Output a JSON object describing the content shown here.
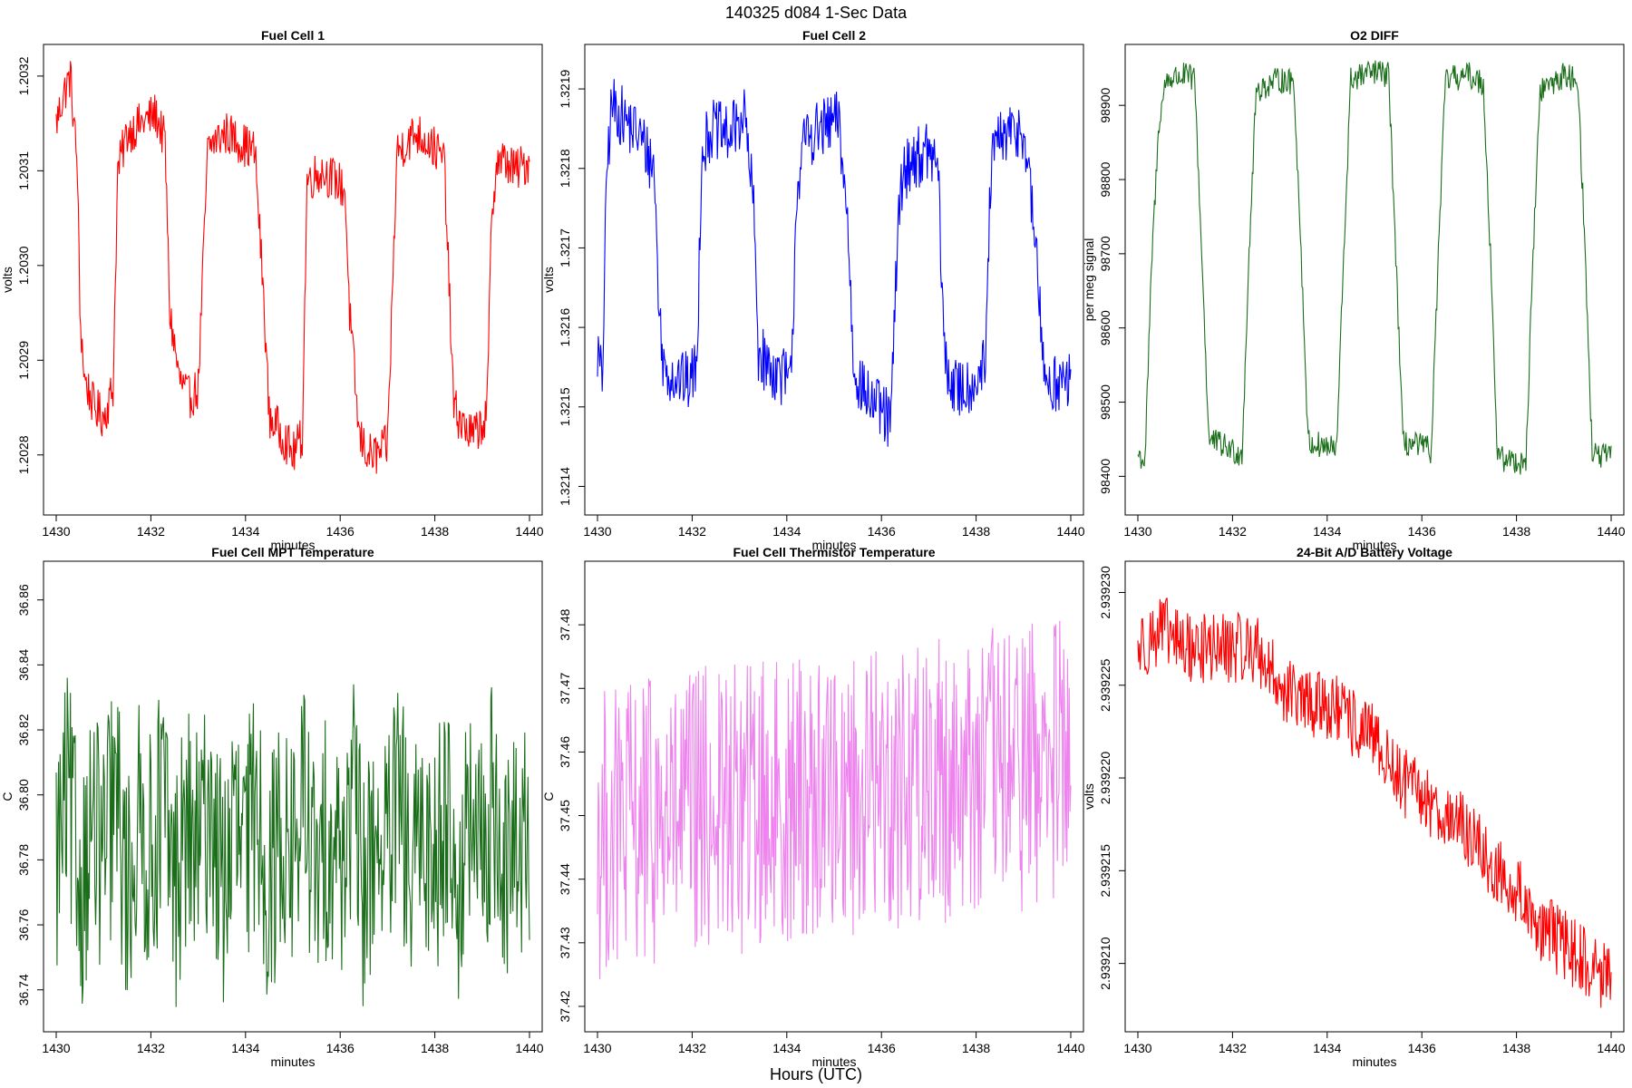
{
  "figure": {
    "title": "140325   d084   1-Sec Data",
    "outer_xlabel": "Hours (UTC)"
  },
  "chart_data": [
    {
      "type": "line",
      "title": "Fuel Cell 1",
      "xlabel": "minutes",
      "ylabel": "volts",
      "color": "#ff0000",
      "xlim": [
        1430,
        1440
      ],
      "ylim": [
        1.20275,
        1.20322
      ],
      "xticks": [
        1430,
        1432,
        1434,
        1436,
        1438,
        1440
      ],
      "xtick_labels": [
        "1430",
        "1432",
        "1434",
        "1436",
        "1438",
        "1440"
      ],
      "yticks": [
        1.2028,
        1.2029,
        1.203,
        1.2031,
        1.2032
      ],
      "ytick_labels": [
        "1.2028",
        "1.2029",
        "1.2030",
        "1.2031",
        "1.2032"
      ],
      "series": [
        {
          "x": [
            1430,
            1430.15,
            1430.3,
            1430.45,
            1430.5,
            1430.6,
            1430.8,
            1431,
            1431.2,
            1431.3,
            1431.5,
            1431.8,
            1432.1,
            1432.3,
            1432.4,
            1432.6,
            1432.8,
            1433,
            1433.2,
            1433.3,
            1433.6,
            1433.9,
            1434.2,
            1434.4,
            1434.5,
            1434.8,
            1435,
            1435.2,
            1435.3,
            1435.6,
            1435.9,
            1436.1,
            1436.2,
            1436.4,
            1436.6,
            1436.8,
            1437,
            1437.2,
            1437.4,
            1437.6,
            1437.9,
            1438.2,
            1438.3,
            1438.4,
            1438.6,
            1438.8,
            1439.1,
            1439.2,
            1439.3,
            1439.5,
            1439.7,
            1440
          ],
          "y": [
            1.20315,
            1.20318,
            1.2032,
            1.2031,
            1.20295,
            1.20288,
            1.20285,
            1.20284,
            1.20287,
            1.2031,
            1.20314,
            1.20315,
            1.20316,
            1.20313,
            1.20295,
            1.20288,
            1.20286,
            1.20287,
            1.20312,
            1.20313,
            1.20314,
            1.20313,
            1.20312,
            1.20295,
            1.20284,
            1.20282,
            1.2028,
            1.20282,
            1.20309,
            1.2031,
            1.20309,
            1.20308,
            1.20295,
            1.20282,
            1.2028,
            1.2028,
            1.20281,
            1.20312,
            1.20313,
            1.20314,
            1.20313,
            1.20311,
            1.20298,
            1.20285,
            1.20283,
            1.20282,
            1.20284,
            1.20305,
            1.20311,
            1.20311,
            1.2031,
            1.20311
          ]
        }
      ]
    },
    {
      "type": "line",
      "title": "Fuel Cell 2",
      "xlabel": "minutes",
      "ylabel": "volts",
      "color": "#0000ff",
      "xlim": [
        1430,
        1440
      ],
      "ylim": [
        1.32138,
        1.32194
      ],
      "xticks": [
        1430,
        1432,
        1434,
        1436,
        1438,
        1440
      ],
      "xtick_labels": [
        "1430",
        "1432",
        "1434",
        "1436",
        "1438",
        "1440"
      ],
      "yticks": [
        1.3214,
        1.3215,
        1.3216,
        1.3217,
        1.3218,
        1.3219
      ],
      "ytick_labels": [
        "1.3214",
        "1.3215",
        "1.3216",
        "1.3217",
        "1.3218",
        "1.3219"
      ],
      "series": [
        {
          "x": [
            1430,
            1430.1,
            1430.2,
            1430.3,
            1430.6,
            1430.9,
            1431.2,
            1431.3,
            1431.4,
            1431.6,
            1431.9,
            1432.1,
            1432.2,
            1432.4,
            1432.8,
            1433.1,
            1433.3,
            1433.4,
            1433.6,
            1433.9,
            1434.1,
            1434.2,
            1434.4,
            1434.8,
            1435.1,
            1435.3,
            1435.4,
            1435.6,
            1435.9,
            1436.2,
            1436.3,
            1436.4,
            1436.6,
            1437,
            1437.2,
            1437.3,
            1437.4,
            1437.6,
            1437.9,
            1438.2,
            1438.3,
            1438.4,
            1438.6,
            1439,
            1439.3,
            1439.4,
            1439.6,
            1440
          ],
          "y": [
            1.32157,
            1.32153,
            1.3218,
            1.32188,
            1.32186,
            1.32184,
            1.3218,
            1.32162,
            1.32155,
            1.32154,
            1.32153,
            1.32155,
            1.32182,
            1.32185,
            1.32184,
            1.32187,
            1.32175,
            1.32157,
            1.32155,
            1.32154,
            1.32153,
            1.32177,
            1.32184,
            1.32185,
            1.32186,
            1.32172,
            1.32156,
            1.32152,
            1.3215,
            1.32148,
            1.32165,
            1.32178,
            1.32181,
            1.32182,
            1.3218,
            1.3216,
            1.32154,
            1.32152,
            1.32153,
            1.32155,
            1.32178,
            1.32183,
            1.32184,
            1.32185,
            1.32168,
            1.32155,
            1.32153,
            1.32153
          ]
        }
      ]
    },
    {
      "type": "line",
      "title": "O2 DIFF",
      "xlabel": "minutes",
      "ylabel": "per meg signal",
      "color": "#1a6e1a",
      "xlim": [
        1430,
        1440
      ],
      "ylim": [
        98365,
        98965
      ],
      "xticks": [
        1430,
        1432,
        1434,
        1436,
        1438,
        1440
      ],
      "xtick_labels": [
        "1430",
        "1432",
        "1434",
        "1436",
        "1438",
        "1440"
      ],
      "yticks": [
        98400,
        98500,
        98600,
        98700,
        98800,
        98900
      ],
      "ytick_labels": [
        "98400",
        "98500",
        "98600",
        "98700",
        "98800",
        "98900"
      ],
      "series": [
        {
          "x": [
            1430,
            1430.15,
            1430.3,
            1430.45,
            1430.6,
            1431,
            1431.2,
            1431.35,
            1431.5,
            1432,
            1432.2,
            1432.35,
            1432.5,
            1433,
            1433.3,
            1433.45,
            1433.6,
            1434,
            1434.2,
            1434.35,
            1434.5,
            1435,
            1435.3,
            1435.45,
            1435.6,
            1436,
            1436.2,
            1436.35,
            1436.5,
            1437,
            1437.3,
            1437.45,
            1437.6,
            1438,
            1438.2,
            1438.35,
            1438.5,
            1439,
            1439.3,
            1439.45,
            1439.6,
            1440
          ],
          "y": [
            98430,
            98420,
            98700,
            98880,
            98935,
            98940,
            98935,
            98700,
            98450,
            98435,
            98430,
            98700,
            98920,
            98935,
            98930,
            98700,
            98445,
            98440,
            98435,
            98700,
            98935,
            98945,
            98940,
            98700,
            98445,
            98440,
            98435,
            98700,
            98935,
            98940,
            98930,
            98700,
            98425,
            98420,
            98420,
            98700,
            98920,
            98940,
            98935,
            98700,
            98430,
            98425
          ]
        }
      ]
    },
    {
      "type": "line",
      "title": "Fuel Cell MPT Temperature",
      "xlabel": "minutes",
      "ylabel": "C",
      "color": "#1a6e1a",
      "xlim": [
        1430,
        1440
      ],
      "ylim": [
        36.731,
        36.868
      ],
      "xticks": [
        1430,
        1432,
        1434,
        1436,
        1438,
        1440
      ],
      "xtick_labels": [
        "1430",
        "1432",
        "1434",
        "1436",
        "1438",
        "1440"
      ],
      "yticks": [
        36.74,
        36.76,
        36.78,
        36.8,
        36.82,
        36.84,
        36.86
      ],
      "ytick_labels": [
        "36.74",
        "36.76",
        "36.78",
        "36.80",
        "36.82",
        "36.84",
        "36.86"
      ],
      "series": [
        {
          "x": [
            1430,
            1430.25,
            1430.5,
            1430.75,
            1431,
            1431.25,
            1431.5,
            1431.75,
            1432,
            1432.25,
            1432.5,
            1432.75,
            1433,
            1433.25,
            1433.5,
            1433.75,
            1434,
            1434.25,
            1434.5,
            1434.75,
            1435,
            1435.25,
            1435.5,
            1435.75,
            1436,
            1436.25,
            1436.5,
            1436.75,
            1437,
            1437.25,
            1437.5,
            1437.75,
            1438,
            1438.25,
            1438.5,
            1438.75,
            1439,
            1439.25,
            1439.5,
            1439.75,
            1440
          ],
          "y": [
            36.78,
            36.8,
            36.77,
            36.79,
            36.78,
            36.8,
            36.77,
            36.79,
            36.78,
            36.8,
            36.77,
            36.79,
            36.78,
            36.8,
            36.77,
            36.79,
            36.78,
            36.8,
            36.77,
            36.79,
            36.78,
            36.8,
            36.77,
            36.79,
            36.78,
            36.8,
            36.77,
            36.79,
            36.78,
            36.8,
            36.77,
            36.79,
            36.78,
            36.8,
            36.77,
            36.79,
            36.78,
            36.8,
            36.77,
            36.79,
            36.78
          ]
        }
      ]
    },
    {
      "type": "line",
      "title": "Fuel Cell Thermistor Temperature",
      "xlabel": "minutes",
      "ylabel": "C",
      "color": "#ee82ee",
      "xlim": [
        1430,
        1440
      ],
      "ylim": [
        37.418,
        37.488
      ],
      "xticks": [
        1430,
        1432,
        1434,
        1436,
        1438,
        1440
      ],
      "xtick_labels": [
        "1430",
        "1432",
        "1434",
        "1436",
        "1438",
        "1440"
      ],
      "yticks": [
        37.42,
        37.43,
        37.44,
        37.45,
        37.46,
        37.47,
        37.48
      ],
      "ytick_labels": [
        "37.42",
        "37.43",
        "37.44",
        "37.45",
        "37.46",
        "37.47",
        "37.48"
      ],
      "series": [
        {
          "x": [
            1430,
            1430.5,
            1431,
            1431.5,
            1432,
            1432.5,
            1433,
            1433.5,
            1434,
            1434.5,
            1435,
            1435.5,
            1436,
            1436.5,
            1437,
            1437.5,
            1438,
            1438.5,
            1439,
            1439.5,
            1440
          ],
          "y": [
            37.447,
            37.448,
            37.449,
            37.449,
            37.45,
            37.451,
            37.451,
            37.452,
            37.452,
            37.453,
            37.454,
            37.454,
            37.455,
            37.455,
            37.456,
            37.456,
            37.457,
            37.457,
            37.458,
            37.458,
            37.459
          ]
        }
      ]
    },
    {
      "type": "line",
      "title": "24-Bit A/D Battery Voltage",
      "xlabel": "minutes",
      "ylabel": "volts",
      "color": "#ff0000",
      "xlim": [
        1430,
        1440
      ],
      "ylim": [
        2.939207,
        2.939231
      ],
      "xticks": [
        1430,
        1432,
        1434,
        1436,
        1438,
        1440
      ],
      "xtick_labels": [
        "1430",
        "1432",
        "1434",
        "1436",
        "1438",
        "1440"
      ],
      "yticks": [
        2.93921,
        2.939215,
        2.93922,
        2.939225,
        2.93923
      ],
      "ytick_labels": [
        "2.939210",
        "2.939215",
        "2.939220",
        "2.939225",
        "2.939230"
      ],
      "series": [
        {
          "x": [
            1430,
            1430.5,
            1431,
            1431.5,
            1432,
            1432.5,
            1433,
            1433.5,
            1434,
            1434.5,
            1435,
            1435.5,
            1436,
            1436.5,
            1437,
            1437.5,
            1438,
            1438.5,
            1439,
            1439.5,
            1440
          ],
          "y": [
            2.939227,
            2.939228,
            2.939227,
            2.939227,
            2.939227,
            2.939227,
            2.939225,
            2.939224,
            2.939224,
            2.939223,
            2.939222,
            2.93922,
            2.939219,
            2.939218,
            2.939217,
            2.939215,
            2.939214,
            2.939212,
            2.939211,
            2.93921,
            2.939209
          ]
        }
      ]
    }
  ]
}
